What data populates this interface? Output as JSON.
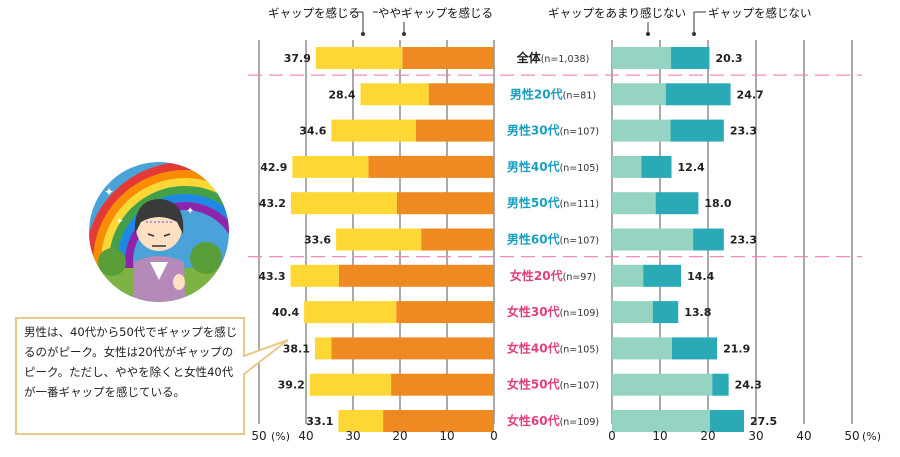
{
  "chart_data": {
    "type": "bar",
    "categories": [
      {
        "name": "全体",
        "n": "(n=1,038)",
        "group": "all"
      },
      {
        "name": "男性20代",
        "n": "(n=81)",
        "group": "male"
      },
      {
        "name": "男性30代",
        "n": "(n=107)",
        "group": "male"
      },
      {
        "name": "男性40代",
        "n": "(n=105)",
        "group": "male"
      },
      {
        "name": "男性50代",
        "n": "(n=111)",
        "group": "male"
      },
      {
        "name": "男性60代",
        "n": "(n=107)",
        "group": "male"
      },
      {
        "name": "女性20代",
        "n": "(n=97)",
        "group": "female"
      },
      {
        "name": "女性30代",
        "n": "(n=109)",
        "group": "female"
      },
      {
        "name": "女性40代",
        "n": "(n=105)",
        "group": "female"
      },
      {
        "name": "女性50代",
        "n": "(n=107)",
        "group": "female"
      },
      {
        "name": "女性60代",
        "n": "(n=109)",
        "group": "female"
      }
    ],
    "left": {
      "series": [
        {
          "name": "ギャップを感じる",
          "color": "#ef8a22",
          "values": [
            19.5,
            13.9,
            16.6,
            26.7,
            20.7,
            15.5,
            33.0,
            20.8,
            34.6,
            21.9,
            23.6
          ]
        },
        {
          "name": "ややギャップを感じる",
          "color": "#fdd835",
          "values": [
            18.4,
            14.5,
            18.0,
            16.2,
            22.5,
            18.1,
            10.3,
            19.6,
            3.5,
            17.3,
            9.5
          ]
        }
      ],
      "totals": [
        "37.9",
        "28.4",
        "34.6",
        "42.9",
        "43.2",
        "33.6",
        "43.3",
        "40.4",
        "38.1",
        "39.2",
        "33.1"
      ],
      "xlim": [
        0,
        50
      ],
      "ticks": [
        "50",
        "40",
        "30",
        "20",
        "10",
        "0"
      ],
      "unit": "(%)",
      "direction": "right-to-left"
    },
    "right": {
      "series": [
        {
          "name": "ギャップをあまり感じない",
          "color": "#95d3c2",
          "values": [
            12.3,
            11.2,
            12.2,
            6.1,
            9.1,
            16.9,
            6.5,
            8.5,
            12.5,
            20.9,
            20.4
          ]
        },
        {
          "name": "ギャップを感じない",
          "color": "#2aa9b6",
          "values": [
            8.0,
            13.5,
            11.1,
            6.3,
            8.9,
            6.4,
            7.9,
            5.3,
            9.4,
            3.4,
            7.1
          ]
        }
      ],
      "totals": [
        "20.3",
        "24.7",
        "23.3",
        "12.4",
        "18.0",
        "23.3",
        "14.4",
        "13.8",
        "21.9",
        "24.3",
        "27.5"
      ],
      "xlim": [
        0,
        50
      ],
      "ticks": [
        "0",
        "10",
        "20",
        "30",
        "40",
        "50"
      ],
      "unit": "(%)",
      "direction": "left-to-right"
    },
    "legend": [
      "ギャップを感じる",
      "ややギャップを感じる",
      "ギャップをあまり感じない",
      "ギャップを感じない"
    ],
    "group_colors": {
      "male": "#1a9fc0",
      "female": "#e0407f",
      "all": "#222222"
    },
    "divider_color": "#f08cc0",
    "grid": true
  },
  "callout": {
    "text": "男性は、40代から50代でギャップを感じるのがピーク。女性は20代がギャップのピーク。ただし、ややを除くと女性40代が一番ギャップを感じている。",
    "border_color": "#e8c98a"
  },
  "illustration": {
    "description_icon": "tired-person-rainbow-icon"
  }
}
